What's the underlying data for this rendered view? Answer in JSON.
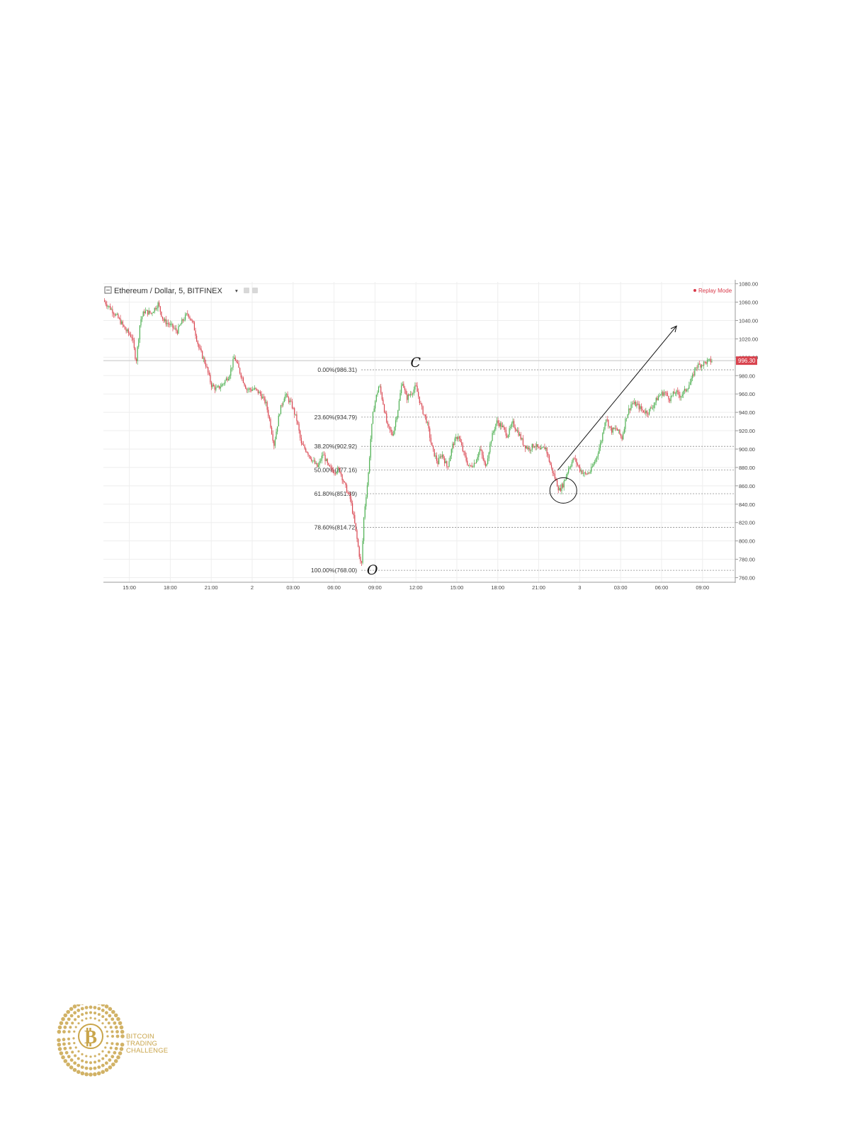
{
  "header": {
    "symbol": "Ethereum / Dollar, 5, BITFINEX",
    "mode": "Replay Mode",
    "current_price": "996.30"
  },
  "chart_data": {
    "type": "candlestick",
    "ylim": [
      755,
      1082
    ],
    "y_ticks": [
      {
        "value": 1080,
        "label": "1080.00"
      },
      {
        "value": 1060,
        "label": "1060.00"
      },
      {
        "value": 1040,
        "label": "1040.00"
      },
      {
        "value": 1020,
        "label": "1020.00"
      },
      {
        "value": 1000,
        "label": "1000.00"
      },
      {
        "value": 980,
        "label": "980.00"
      },
      {
        "value": 960,
        "label": "960.00"
      },
      {
        "value": 940,
        "label": "940.00"
      },
      {
        "value": 920,
        "label": "920.00"
      },
      {
        "value": 900,
        "label": "900.00"
      },
      {
        "value": 880,
        "label": "880.00"
      },
      {
        "value": 860,
        "label": "860.00"
      },
      {
        "value": 840,
        "label": "840.00"
      },
      {
        "value": 820,
        "label": "820.00"
      },
      {
        "value": 800,
        "label": "800.00"
      },
      {
        "value": 780,
        "label": "780.00"
      },
      {
        "value": 760,
        "label": "760.00"
      }
    ],
    "x_ticks": [
      {
        "hour": 15,
        "label": "15:00"
      },
      {
        "hour": 18,
        "label": "18:00"
      },
      {
        "hour": 21,
        "label": "21:00"
      },
      {
        "hour": 24,
        "label": "2"
      },
      {
        "hour": 27,
        "label": "03:00"
      },
      {
        "hour": 30,
        "label": "06:00"
      },
      {
        "hour": 33,
        "label": "09:00"
      },
      {
        "hour": 36,
        "label": "12:00"
      },
      {
        "hour": 39,
        "label": "15:00"
      },
      {
        "hour": 42,
        "label": "18:00"
      },
      {
        "hour": 45,
        "label": "21:00"
      },
      {
        "hour": 48,
        "label": "3"
      },
      {
        "hour": 51,
        "label": "03:00"
      },
      {
        "hour": 54,
        "label": "06:00"
      },
      {
        "hour": 57,
        "label": "09:00"
      }
    ],
    "x_range_hours": [
      13.1,
      59.4
    ],
    "price_path": [
      [
        13.1,
        1062
      ],
      [
        13.8,
        1050
      ],
      [
        14.3,
        1040
      ],
      [
        14.7,
        1030
      ],
      [
        15.2,
        1022
      ],
      [
        15.5,
        995
      ],
      [
        15.8,
        1040
      ],
      [
        16.1,
        1050
      ],
      [
        16.6,
        1048
      ],
      [
        17.1,
        1058
      ],
      [
        17.5,
        1040
      ],
      [
        18.0,
        1035
      ],
      [
        18.5,
        1028
      ],
      [
        18.9,
        1040
      ],
      [
        19.3,
        1048
      ],
      [
        19.7,
        1035
      ],
      [
        20.1,
        1010
      ],
      [
        20.6,
        992
      ],
      [
        21.0,
        970
      ],
      [
        21.4,
        965
      ],
      [
        21.8,
        970
      ],
      [
        22.3,
        980
      ],
      [
        22.7,
        1000
      ],
      [
        23.2,
        980
      ],
      [
        23.6,
        965
      ],
      [
        24.2,
        965
      ],
      [
        24.6,
        960
      ],
      [
        25.0,
        950
      ],
      [
        25.3,
        930
      ],
      [
        25.6,
        905
      ],
      [
        26.0,
        940
      ],
      [
        26.4,
        960
      ],
      [
        26.9,
        948
      ],
      [
        27.3,
        930
      ],
      [
        27.6,
        905
      ],
      [
        28.0,
        898
      ],
      [
        28.4,
        888
      ],
      [
        28.8,
        880
      ],
      [
        29.2,
        895
      ],
      [
        29.6,
        880
      ],
      [
        30.0,
        876
      ],
      [
        30.4,
        878
      ],
      [
        30.8,
        860
      ],
      [
        31.2,
        845
      ],
      [
        31.5,
        820
      ],
      [
        31.8,
        790
      ],
      [
        32.0,
        770
      ],
      [
        32.2,
        830
      ],
      [
        32.5,
        870
      ],
      [
        32.7,
        915
      ],
      [
        32.9,
        945
      ],
      [
        33.3,
        970
      ],
      [
        33.6,
        950
      ],
      [
        33.9,
        925
      ],
      [
        34.3,
        915
      ],
      [
        34.7,
        945
      ],
      [
        35.0,
        975
      ],
      [
        35.3,
        955
      ],
      [
        35.7,
        962
      ],
      [
        36.0,
        968
      ],
      [
        36.4,
        945
      ],
      [
        36.8,
        930
      ],
      [
        37.2,
        900
      ],
      [
        37.6,
        885
      ],
      [
        37.9,
        895
      ],
      [
        38.3,
        880
      ],
      [
        38.7,
        905
      ],
      [
        39.1,
        915
      ],
      [
        39.5,
        895
      ],
      [
        39.9,
        880
      ],
      [
        40.3,
        885
      ],
      [
        40.7,
        900
      ],
      [
        41.1,
        880
      ],
      [
        41.5,
        910
      ],
      [
        41.9,
        930
      ],
      [
        42.3,
        925
      ],
      [
        42.7,
        915
      ],
      [
        43.1,
        928
      ],
      [
        43.5,
        918
      ],
      [
        43.9,
        905
      ],
      [
        44.3,
        900
      ],
      [
        44.7,
        905
      ],
      [
        45.1,
        898
      ],
      [
        45.5,
        902
      ],
      [
        45.9,
        880
      ],
      [
        46.2,
        868
      ],
      [
        46.5,
        855
      ],
      [
        46.8,
        862
      ],
      [
        47.2,
        880
      ],
      [
        47.6,
        890
      ],
      [
        48.0,
        878
      ],
      [
        48.4,
        872
      ],
      [
        48.8,
        876
      ],
      [
        49.2,
        890
      ],
      [
        49.6,
        910
      ],
      [
        49.9,
        935
      ],
      [
        50.3,
        920
      ],
      [
        50.7,
        922
      ],
      [
        51.1,
        912
      ],
      [
        51.4,
        935
      ],
      [
        51.8,
        950
      ],
      [
        52.2,
        948
      ],
      [
        52.6,
        942
      ],
      [
        53.0,
        940
      ],
      [
        53.4,
        948
      ],
      [
        53.8,
        958
      ],
      [
        54.2,
        962
      ],
      [
        54.6,
        955
      ],
      [
        55.0,
        962
      ],
      [
        55.4,
        958
      ],
      [
        55.8,
        965
      ],
      [
        56.2,
        975
      ],
      [
        56.5,
        990
      ],
      [
        56.9,
        992
      ],
      [
        57.3,
        995
      ],
      [
        57.7,
        996.3
      ]
    ],
    "fib_levels": [
      {
        "label": "0.00%(986.31)",
        "value": 986.31
      },
      {
        "label": "23.60%(934.79)",
        "value": 934.79
      },
      {
        "label": "38.20%(902.92)",
        "value": 902.92
      },
      {
        "label": "50.00%(877.16)",
        "value": 877.16
      },
      {
        "label": "61.80%(851.39)",
        "value": 851.39
      },
      {
        "label": "78.60%(814.72)",
        "value": 814.72
      },
      {
        "label": "100.00%(768.00)",
        "value": 768.0
      }
    ],
    "fib_start_hour": 32.0,
    "current_price_value": 996.3,
    "annotations": [
      {
        "label": "C",
        "hour": 35.6,
        "value": 986.31
      },
      {
        "label": "O",
        "hour": 32.4,
        "value": 768.0
      }
    ],
    "circle": {
      "hour": 46.8,
      "value": 855
    },
    "arrow": {
      "from": [
        46.4,
        877
      ],
      "to": [
        55.1,
        1034
      ]
    },
    "colors": {
      "up": "#4caf50",
      "down": "#d9434e",
      "grid": "#eeeeee",
      "fib": "#888888"
    }
  },
  "logo": {
    "line1": "BITCOIN",
    "line2": "TRADING",
    "line3": "CHALLENGE",
    "color": "#c9a54b",
    "icon": "bitcoin-coin-icon"
  }
}
